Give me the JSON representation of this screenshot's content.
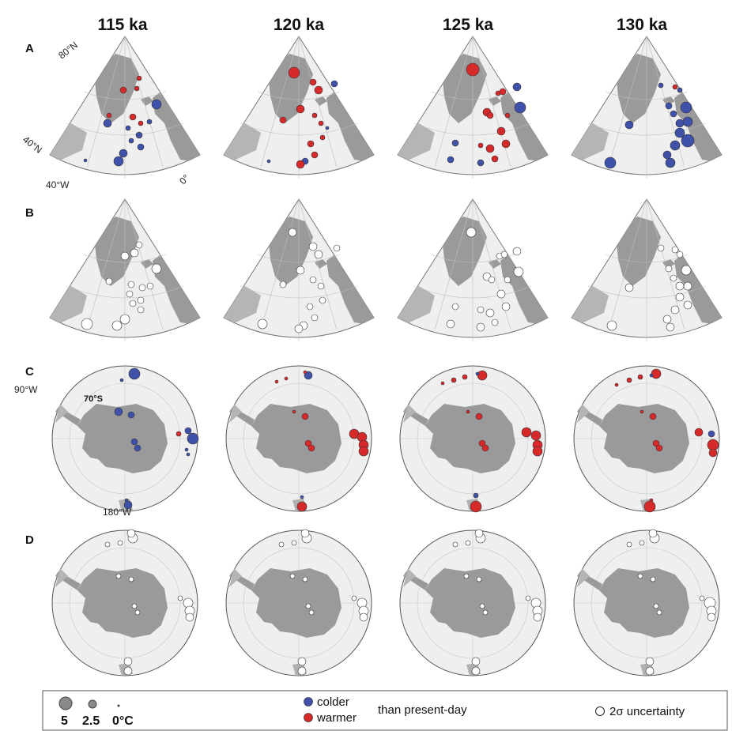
{
  "columns": [
    "115 ka",
    "120 ka",
    "125 ka",
    "130 ka"
  ],
  "rows": [
    "A",
    "B",
    "C",
    "D"
  ],
  "coord_labels": {
    "lat_80n": "80°N",
    "lat_40n": "40°N",
    "lon_40w": "40°W",
    "lon_0": "0°",
    "lon_90w": "90°W",
    "lat_70s": "70°S",
    "lon_180w": "180°W"
  },
  "legend": {
    "size_labels": [
      "5",
      "2.5",
      "0°C"
    ],
    "colder": "colder",
    "warmer": "warmer",
    "than_present": "than present-day",
    "uncertainty": "2σ uncertainty"
  },
  "colors": {
    "colder": "#3f51a8",
    "warmer": "#d62a2a",
    "land": "#9a9a9a",
    "ocean": "#efefef"
  }
}
